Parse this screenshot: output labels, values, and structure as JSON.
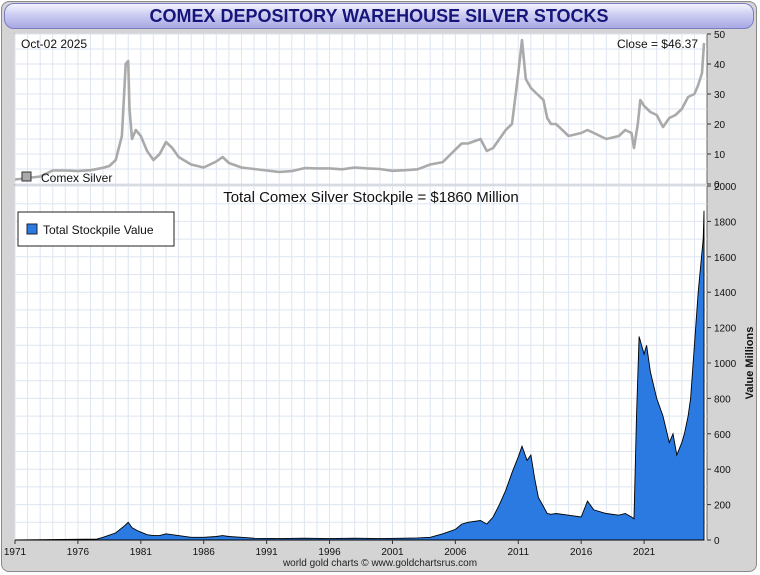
{
  "header": {
    "title": "COMEX DEPOSITORY WAREHOUSE SILVER STOCKS"
  },
  "top_panel": {
    "date_label": "Oct-02  2025",
    "close_label": "Close = $46.37",
    "legend_label": "Comex Silver"
  },
  "bottom_panel": {
    "total_label": "Total Comex Silver Stockpile = $1860 Million",
    "legend_label": "Total Stockpile Value",
    "ylabel": "Value Millions"
  },
  "footer": {
    "credit": "world gold charts © www.goldchartsrus.com"
  },
  "colors": {
    "price_line": "#aaaaaa",
    "stockpile_fill": "#2a7ae2",
    "stockpile_edge": "#000000",
    "grid": "#dde5f0"
  },
  "chart_data": [
    {
      "type": "line",
      "series": [
        {
          "name": "Comex Silver",
          "x": [
            1971,
            1973,
            1974,
            1975,
            1976,
            1977,
            1978,
            1978.5,
            1979,
            1979.5,
            1979.8,
            1980.0,
            1980.1,
            1980.3,
            1980.6,
            1981,
            1981.5,
            1982,
            1982.5,
            1983,
            1983.5,
            1984,
            1985,
            1986,
            1987,
            1987.5,
            1988,
            1989,
            1990,
            1992,
            1993,
            1994,
            1995,
            1996,
            1997,
            1998,
            1999,
            2000,
            2001,
            2002,
            2003,
            2004,
            2005,
            2006,
            2006.5,
            2007,
            2008,
            2008.5,
            2009,
            2010,
            2010.5,
            2011,
            2011.3,
            2011.6,
            2012,
            2012.5,
            2013,
            2013.3,
            2013.6,
            2014,
            2015,
            2016,
            2016.5,
            2017,
            2018,
            2019,
            2019.5,
            2020,
            2020.2,
            2020.5,
            2020.7,
            2021,
            2021.5,
            2022,
            2022.5,
            2023,
            2023.5,
            2024,
            2024.5,
            2025,
            2025.3,
            2025.6,
            2025.76
          ],
          "y": [
            1.5,
            2.5,
            4.5,
            4.5,
            4.3,
            4.6,
            5.4,
            6,
            8,
            16,
            40,
            41,
            25,
            15,
            18,
            16,
            11,
            8,
            10,
            14,
            12,
            9,
            6.5,
            5.5,
            7.5,
            9,
            7,
            5.5,
            5,
            4,
            4.3,
            5.3,
            5.2,
            5.2,
            4.9,
            5.5,
            5.2,
            5,
            4.4,
            4.6,
            4.9,
            6.5,
            7.3,
            11.5,
            13.5,
            13.5,
            15,
            11,
            12,
            18,
            20,
            37,
            48,
            35,
            32,
            30,
            28,
            22,
            20,
            20,
            16,
            17,
            18,
            17,
            15,
            16,
            18,
            17,
            12,
            20,
            28,
            26,
            24,
            23,
            19,
            22,
            23,
            25,
            29,
            30,
            33,
            37,
            47
          ],
          "xlim": [
            1971,
            2026
          ],
          "ylim": [
            0,
            50
          ],
          "yticks": [
            0,
            10,
            20,
            30,
            40,
            50
          ]
        }
      ]
    },
    {
      "type": "area",
      "title": "Total Comex Silver Stockpile = $1860 Million",
      "ylabel": "Value Millions",
      "series": [
        {
          "name": "Total Stockpile Value",
          "x": [
            1971,
            1977.5,
            1978,
            1979,
            1979.7,
            1980,
            1980.3,
            1980.8,
            1981.5,
            1982,
            1982.5,
            1983,
            1984,
            1985,
            1986,
            1987,
            1987.5,
            1988,
            1989,
            1990,
            1992,
            1994,
            1996,
            1998,
            2000,
            2002,
            2003,
            2004,
            2004.5,
            2005,
            2006,
            2006.5,
            2007,
            2008,
            2008.5,
            2009,
            2009.5,
            2010,
            2010.5,
            2011,
            2011.3,
            2011.7,
            2012,
            2012.3,
            2012.6,
            2013,
            2013.3,
            2013.6,
            2014,
            2015,
            2016,
            2016.5,
            2017,
            2018,
            2019,
            2019.5,
            2020,
            2020.2,
            2020.4,
            2020.6,
            2021,
            2021.2,
            2021.5,
            2022,
            2022.5,
            2023,
            2023.3,
            2023.6,
            2024,
            2024.2,
            2024.5,
            2024.7,
            2025,
            2025.3,
            2025.5,
            2025.7,
            2025.76
          ],
          "y": [
            0,
            5,
            15,
            40,
            80,
            100,
            70,
            50,
            30,
            25,
            25,
            35,
            25,
            15,
            15,
            20,
            25,
            20,
            15,
            10,
            8,
            10,
            8,
            10,
            8,
            10,
            12,
            15,
            25,
            35,
            60,
            90,
            100,
            110,
            90,
            130,
            200,
            280,
            380,
            470,
            530,
            450,
            480,
            350,
            240,
            190,
            150,
            145,
            150,
            140,
            130,
            220,
            170,
            150,
            140,
            150,
            130,
            120,
            700,
            1150,
            1050,
            1100,
            950,
            800,
            700,
            550,
            600,
            480,
            550,
            600,
            700,
            800,
            1100,
            1400,
            1550,
            1700,
            1860
          ],
          "xlim": [
            1971,
            2026
          ],
          "ylim": [
            0,
            2000
          ],
          "yticks": [
            0,
            200,
            400,
            600,
            800,
            1000,
            1200,
            1400,
            1600,
            1800,
            2000
          ]
        }
      ],
      "xticks": [
        1971,
        1976,
        1981,
        1986,
        1991,
        1996,
        2001,
        2006,
        2011,
        2016,
        2021
      ]
    }
  ]
}
